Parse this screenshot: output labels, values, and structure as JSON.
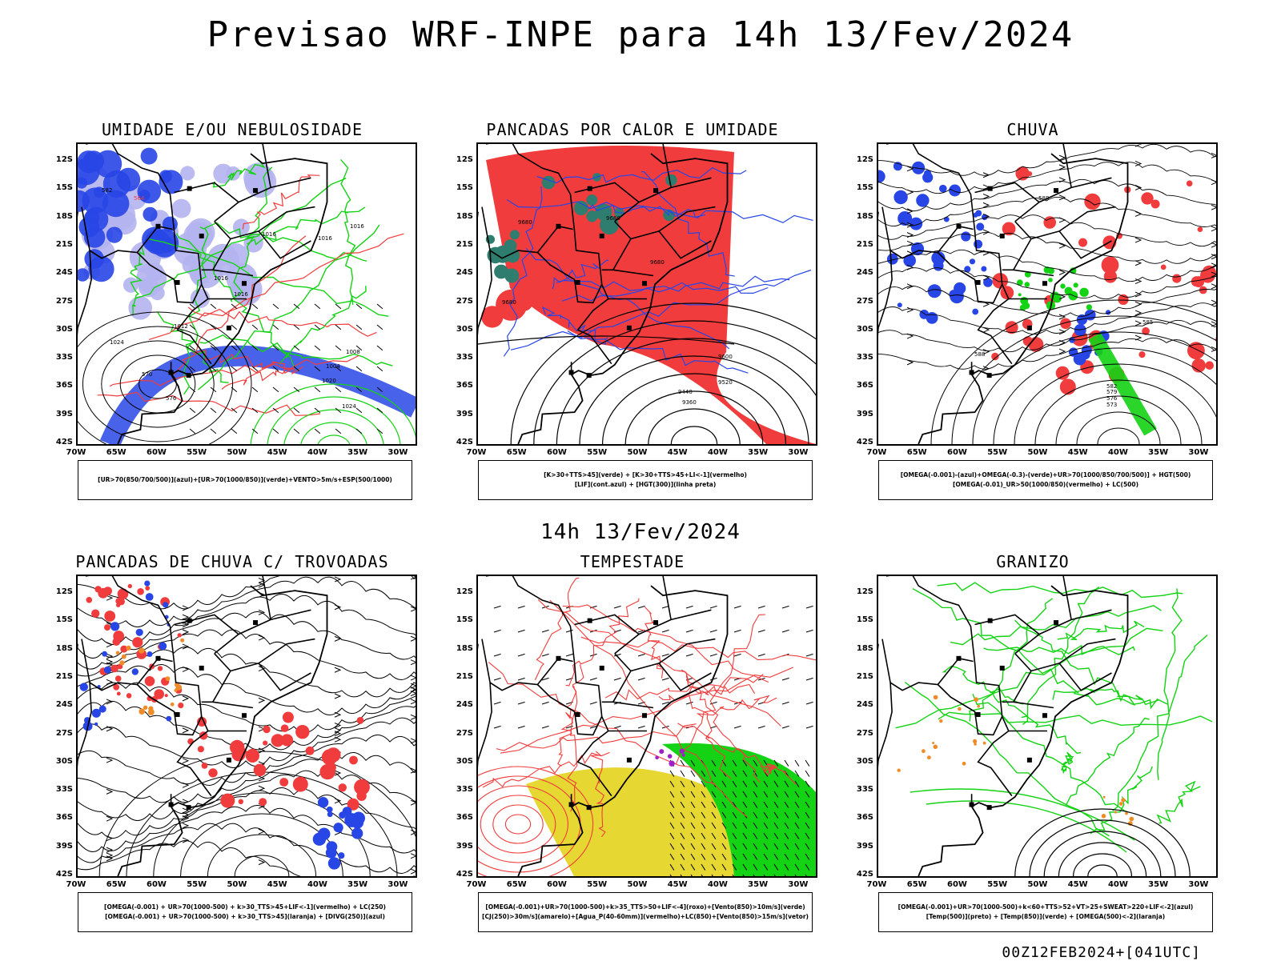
{
  "title": "Previsao WRF-INPE  para 14h 13/Fev/2024",
  "subtitle": "14h 13/Fev/2024",
  "run_info": "00Z12FEB2024+[041UTC]",
  "lat_labels": [
    "12S",
    "15S",
    "18S",
    "21S",
    "24S",
    "27S",
    "30S",
    "33S",
    "36S",
    "39S",
    "42S"
  ],
  "lon_labels": [
    "70W",
    "65W",
    "60W",
    "55W",
    "50W",
    "45W",
    "40W",
    "35W",
    "30W"
  ],
  "colors": {
    "blue": "#2846e6",
    "light_blue": "#b4b4f0",
    "green": "#14d214",
    "red": "#f03c3c",
    "dark_teal": "#2f7d6e",
    "yellow": "#e6d732",
    "orange": "#f08c28",
    "purple": "#a020c8",
    "black": "#000000"
  },
  "panels": [
    {
      "title": "UMIDADE E/OU NEBULOSIDADE",
      "legend": [
        "[UR>70(850/700/500)](azul)+[UR>70(1000/850)](verde)+VENTO>5m/s+ESP(500/1000)"
      ],
      "contour_labels": [
        "1016",
        "1016",
        "1016",
        "1016",
        "1016",
        "1012",
        "1008",
        "1004",
        "1020",
        "1024",
        "1024",
        "570",
        "576",
        "582",
        "564"
      ]
    },
    {
      "title": "PANCADAS POR CALOR E UMIDADE",
      "legend": [
        "[K>30+TTS>45](verde)  +  [K>30+TTS>45+LI<-1](vermelho)",
        "[LIF](cont.azul)  +  [HGT(300)](linha preta)"
      ],
      "contour_labels": [
        "9680",
        "9680",
        "9680",
        "9680",
        "9600",
        "9520",
        "9440",
        "9360"
      ]
    },
    {
      "title": "CHUVA",
      "legend": [
        "[OMEGA(-0.001)-(azul)+OMEGA(-0.3)-(verde)+UR>70(1000/850/700/500)]  +  HGT(500)",
        "[OMEGA(-0.01)_UR>50(1000/850)(vermelho)  +  LC(500)"
      ],
      "contour_labels": [
        "588",
        "588",
        "585",
        "582",
        "579",
        "576",
        "573"
      ]
    },
    {
      "title": "PANCADAS DE CHUVA C/ TROVOADAS",
      "legend": [
        "[OMEGA(-0.001)  +  UR>70(1000-500)  +  k>30_TTS>45+LIF<-1](vermelho)  +  LC(250)",
        "[OMEGA(-0.001)  +  UR>70(1000-500)  +  k>30_TTS>45](laranja)  +  [DIVG(250)](azul)"
      ],
      "contour_labels": []
    },
    {
      "title": "TEMPESTADE",
      "legend": [
        "[OMEGA(-0.001)+UR>70(1000-500)+k>35_TTS>50+LIF<-4](roxo)+[Vento(850)>10m/s](verde)",
        "[CJ(250)>30m/s](amarelo)+[Agua_P(40-60mm)](vermelho)+LC(850)+[Vento(850)>15m/s](vetor)"
      ],
      "contour_labels": []
    },
    {
      "title": "GRANIZO",
      "legend": [
        "[OMEGA(-0.001)+UR>70(1000-500)+k<60+TTS>52+VT>25+SWEAT>220+LIF<-2](azul)",
        "[Temp(500)](preto)  +  [Temp(850)](verde)  +  [OMEGA(500)<-2](laranja)"
      ],
      "contour_labels": []
    }
  ]
}
